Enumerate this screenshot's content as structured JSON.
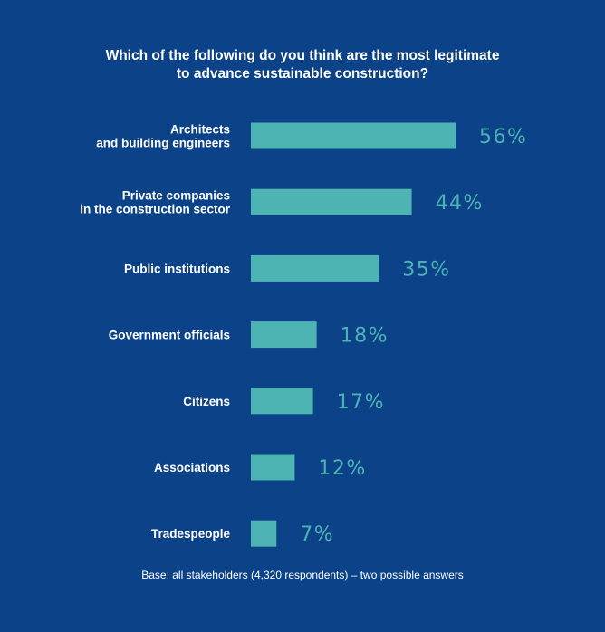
{
  "chart_data": {
    "type": "bar",
    "orientation": "horizontal",
    "title_lines": [
      "Which of the following do you think are the most legitimate",
      "to advance sustainable construction?"
    ],
    "categories": [
      [
        "Architects",
        "and building engineers"
      ],
      [
        "Private companies",
        "in the construction sector"
      ],
      [
        "Public institutions"
      ],
      [
        "Government officials"
      ],
      [
        "Citizens"
      ],
      [
        "Associations"
      ],
      [
        "Tradespeople"
      ]
    ],
    "values": [
      56,
      44,
      35,
      18,
      17,
      12,
      7
    ],
    "value_labels": [
      "56%",
      "44%",
      "35%",
      "18%",
      "17%",
      "12%",
      "7%"
    ],
    "unit": "%",
    "xlim": [
      0,
      56
    ],
    "footnote": "Base: all stakeholders (4,320 respondents) – two possible answers"
  },
  "colors": {
    "background": "#0b4288",
    "bar": "#4db3b3",
    "value_label": "#4db3b3",
    "text": "#ffffff"
  }
}
